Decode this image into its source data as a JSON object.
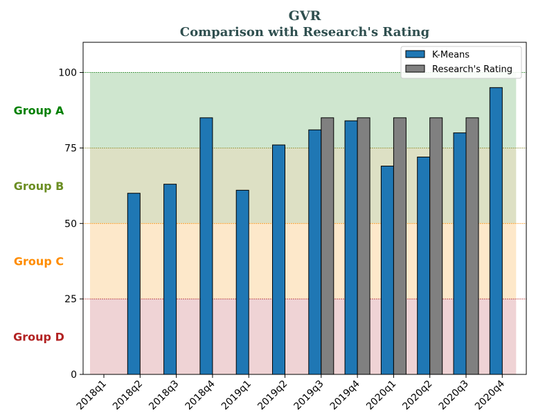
{
  "chart_data": {
    "type": "bar",
    "title": "GVR",
    "subtitle": "Comparison with Research's Rating",
    "xlabel": "",
    "ylabel": "",
    "ylim": [
      0,
      110
    ],
    "yticks": [
      0,
      25,
      50,
      75,
      100
    ],
    "categories": [
      "2018q1",
      "2018q2",
      "2018q3",
      "2018q4",
      "2019q1",
      "2019q2",
      "2019q3",
      "2019q4",
      "2020q1",
      "2020q2",
      "2020q3",
      "2020q4"
    ],
    "series": [
      {
        "name": "K-Means",
        "color": "#1f77b4",
        "values": [
          null,
          60,
          63,
          85,
          61,
          76,
          81,
          84,
          69,
          72,
          80,
          95
        ]
      },
      {
        "name": "Research's Rating",
        "color": "#808080",
        "values": [
          null,
          null,
          null,
          null,
          null,
          null,
          85,
          85,
          85,
          85,
          85,
          null
        ]
      }
    ],
    "bands": [
      {
        "label": "Group A",
        "range": [
          75,
          100
        ],
        "fill": "#cfe6cf",
        "line": "#2e8b2e",
        "label_color": "#008000"
      },
      {
        "label": "Group B",
        "range": [
          50,
          75
        ],
        "fill": "#dde0c4",
        "line": "#8a8a2a",
        "label_color": "#6b8e23"
      },
      {
        "label": "Group C",
        "range": [
          25,
          50
        ],
        "fill": "#fde8ca",
        "line": "#ff8c00",
        "label_color": "#ff8c00"
      },
      {
        "label": "Group D",
        "range": [
          0,
          25
        ],
        "fill": "#efd3d5",
        "line": "#b22222",
        "label_color": "#b22222"
      }
    ],
    "legend": {
      "position": "top-right"
    },
    "grid": false
  }
}
